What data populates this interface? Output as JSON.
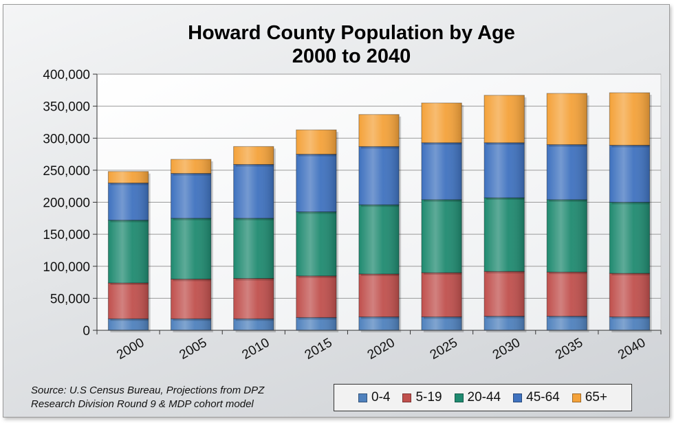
{
  "chart_data": {
    "type": "bar",
    "stacked": true,
    "title_line1": "Howard County Population by Age",
    "title_line2": "2000 to 2040",
    "xlabel": "",
    "ylabel": "",
    "ylim": [
      0,
      400000
    ],
    "yticks": [
      "0",
      "50,000",
      "100,000",
      "150,000",
      "200,000",
      "250,000",
      "300,000",
      "350,000",
      "400,000"
    ],
    "categories": [
      "2000",
      "2005",
      "2010",
      "2015",
      "2020",
      "2025",
      "2030",
      "2035",
      "2040"
    ],
    "series": [
      {
        "name": "0-4",
        "color": "#4f81bd",
        "values": [
          18000,
          18000,
          18000,
          20000,
          21000,
          21000,
          22000,
          22000,
          21000
        ]
      },
      {
        "name": "5-19",
        "color": "#c0504d",
        "values": [
          56000,
          62000,
          63000,
          65000,
          67000,
          69000,
          70000,
          69000,
          68000
        ]
      },
      {
        "name": "20-44",
        "color": "#1f8a70",
        "values": [
          98000,
          95000,
          94000,
          100000,
          108000,
          114000,
          115000,
          113000,
          111000
        ]
      },
      {
        "name": "45-64",
        "color": "#3f72bf",
        "values": [
          58000,
          70000,
          84000,
          90000,
          91000,
          89000,
          86000,
          86000,
          89000
        ]
      },
      {
        "name": "65+",
        "color": "#f4a23a",
        "values": [
          18000,
          22000,
          28000,
          38000,
          50000,
          62000,
          74000,
          80000,
          82000
        ]
      }
    ],
    "grid": true,
    "legend_position": "bottom-right"
  },
  "source_line1": "Source:  U.S Census Bureau, Projections from DPZ",
  "source_line2": "Research Division Round 9 & MDP cohort model"
}
